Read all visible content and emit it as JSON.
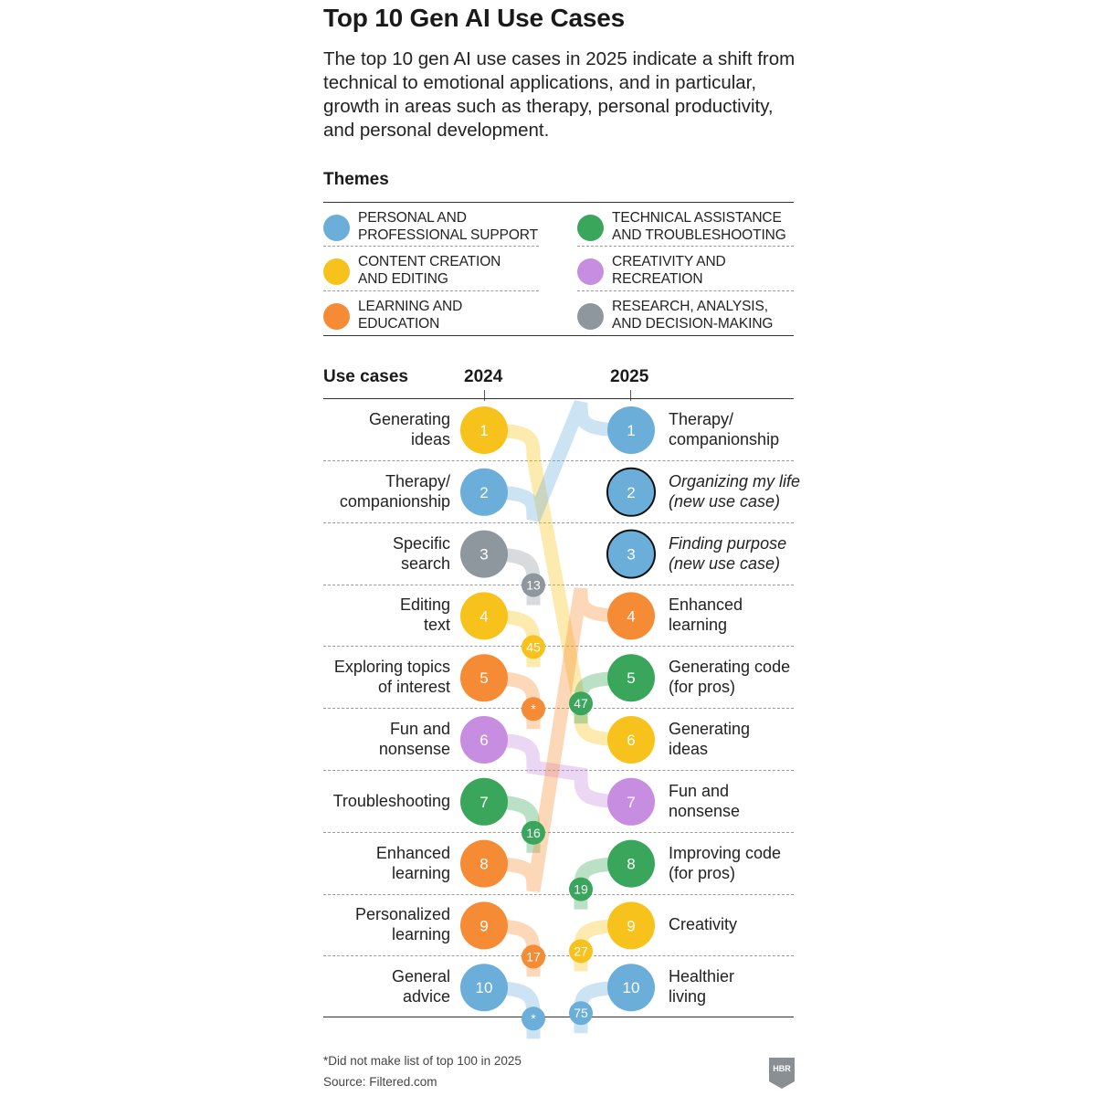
{
  "title": "Top 10 Gen AI Use Cases",
  "subtitle": "The top 10 gen AI use cases in 2025 indicate a shift from technical to emotional applications, and in particular, growth in areas such as therapy, personal productivity, and personal development.",
  "themes_heading": "Themes",
  "colors": {
    "personal": "#6aaed9",
    "technical": "#3aa65c",
    "content": "#f7c21b",
    "creativity": "#c78de0",
    "learning": "#f58b35",
    "research": "#8e979e"
  },
  "legend": [
    {
      "theme": "personal",
      "label": "PERSONAL AND\nPROFESSIONAL SUPPORT"
    },
    {
      "theme": "technical",
      "label": "TECHNICAL ASSISTANCE\nAND TROUBLESHOOTING"
    },
    {
      "theme": "content",
      "label": "CONTENT CREATION\nAND EDITING"
    },
    {
      "theme": "creativity",
      "label": "CREATIVITY AND\nRECREATION"
    },
    {
      "theme": "learning",
      "label": "LEARNING AND\nEDUCATION"
    },
    {
      "theme": "research",
      "label": "RESEARCH, ANALYSIS,\nAND DECISION-MAKING"
    }
  ],
  "chart_data": {
    "type": "table",
    "subtype": "rank-bump",
    "title": "Top 10 Gen AI Use Cases",
    "column_heading": "Use cases",
    "years": [
      "2024",
      "2025"
    ],
    "ranks_2024": [
      {
        "rank": 1,
        "label": "Generating\nideas",
        "theme": "content",
        "rank_2025": 6
      },
      {
        "rank": 2,
        "label": "Therapy/\ncompanionship",
        "theme": "personal",
        "rank_2025": 1
      },
      {
        "rank": 3,
        "label": "Specific\nsearch",
        "theme": "research",
        "rank_2025": 13
      },
      {
        "rank": 4,
        "label": "Editing\ntext",
        "theme": "content",
        "rank_2025": 45
      },
      {
        "rank": 5,
        "label": "Exploring topics\nof interest",
        "theme": "learning",
        "rank_2025": "*"
      },
      {
        "rank": 6,
        "label": "Fun and\nnonsense",
        "theme": "creativity",
        "rank_2025": 7
      },
      {
        "rank": 7,
        "label": "Troubleshooting",
        "theme": "technical",
        "rank_2025": 16
      },
      {
        "rank": 8,
        "label": "Enhanced\nlearning",
        "theme": "learning",
        "rank_2025": 4
      },
      {
        "rank": 9,
        "label": "Personalized\nlearning",
        "theme": "learning",
        "rank_2025": 17
      },
      {
        "rank": 10,
        "label": "General\nadvice",
        "theme": "personal",
        "rank_2025": "*"
      }
    ],
    "ranks_2025": [
      {
        "rank": 1,
        "label": "Therapy/\ncompanionship",
        "theme": "personal",
        "rank_2024": 2,
        "new": false
      },
      {
        "rank": 2,
        "label": "Organizing my life\n(new use case)",
        "theme": "personal",
        "rank_2024": null,
        "new": true
      },
      {
        "rank": 3,
        "label": "Finding purpose\n(new use case)",
        "theme": "personal",
        "rank_2024": null,
        "new": true
      },
      {
        "rank": 4,
        "label": "Enhanced\nlearning",
        "theme": "learning",
        "rank_2024": 8,
        "new": false
      },
      {
        "rank": 5,
        "label": "Generating code\n(for pros)",
        "theme": "technical",
        "rank_2024": 47,
        "new": false
      },
      {
        "rank": 6,
        "label": "Generating\nideas",
        "theme": "content",
        "rank_2024": 1,
        "new": false
      },
      {
        "rank": 7,
        "label": "Fun and\nnonsense",
        "theme": "creativity",
        "rank_2024": 6,
        "new": false
      },
      {
        "rank": 8,
        "label": "Improving code\n(for pros)",
        "theme": "technical",
        "rank_2024": 19,
        "new": false
      },
      {
        "rank": 9,
        "label": "Creativity",
        "theme": "content",
        "rank_2024": 27,
        "new": false
      },
      {
        "rank": 10,
        "label": "Healthier\nliving",
        "theme": "personal",
        "rank_2024": 75,
        "new": false
      }
    ]
  },
  "footnote": "*Did not make list of top 100 in 2025",
  "source": "Source: Filtered.com",
  "logo_text": "HBR"
}
